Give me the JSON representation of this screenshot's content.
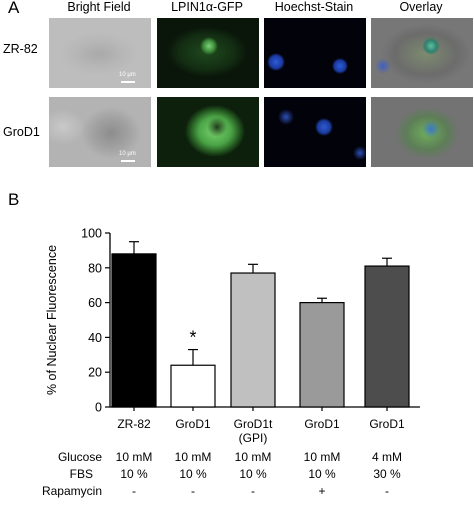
{
  "panel_a": {
    "letter": "A",
    "columns": [
      "Bright Field",
      "LPIN1α-GFP",
      "Hoechst-Stain",
      "Overlay"
    ],
    "rows": [
      "ZR-82",
      "GroD1"
    ],
    "scale_label": "10 μm"
  },
  "panel_b": {
    "letter": "B"
  },
  "chart_data": {
    "type": "bar",
    "ylabel": "% of Nuclear Fluorescence",
    "ylim": [
      0,
      100
    ],
    "yticks": [
      0,
      20,
      40,
      60,
      80,
      100
    ],
    "categories": [
      "ZR-82",
      "GroD1",
      "GroD1t (GPI)",
      "GroD1",
      "GroD1"
    ],
    "category_lines": [
      [
        "ZR-82"
      ],
      [
        "GroD1"
      ],
      [
        "GroD1t",
        "(GPI)"
      ],
      [
        "GroD1"
      ],
      [
        "GroD1"
      ]
    ],
    "values": [
      88,
      24,
      77,
      60,
      81
    ],
    "errors": [
      7,
      9,
      5,
      2.5,
      4.5
    ],
    "bar_colors": [
      "#000000",
      "#ffffff",
      "#c0c0c0",
      "#9a9a9a",
      "#4d4d4d"
    ],
    "annotations": [
      {
        "category_index": 1,
        "text": "*"
      }
    ],
    "grid": false
  },
  "conditions": [
    {
      "label": "Glucose",
      "values": [
        "10 mM",
        "10 mM",
        "10 mM",
        "10 mM",
        "4 mM"
      ]
    },
    {
      "label": "FBS",
      "values": [
        "10 %",
        "10 %",
        "10 %",
        "10 %",
        "30 %"
      ]
    },
    {
      "label": "Rapamycin",
      "values": [
        "-",
        "-",
        "-",
        "+",
        "-"
      ]
    }
  ]
}
